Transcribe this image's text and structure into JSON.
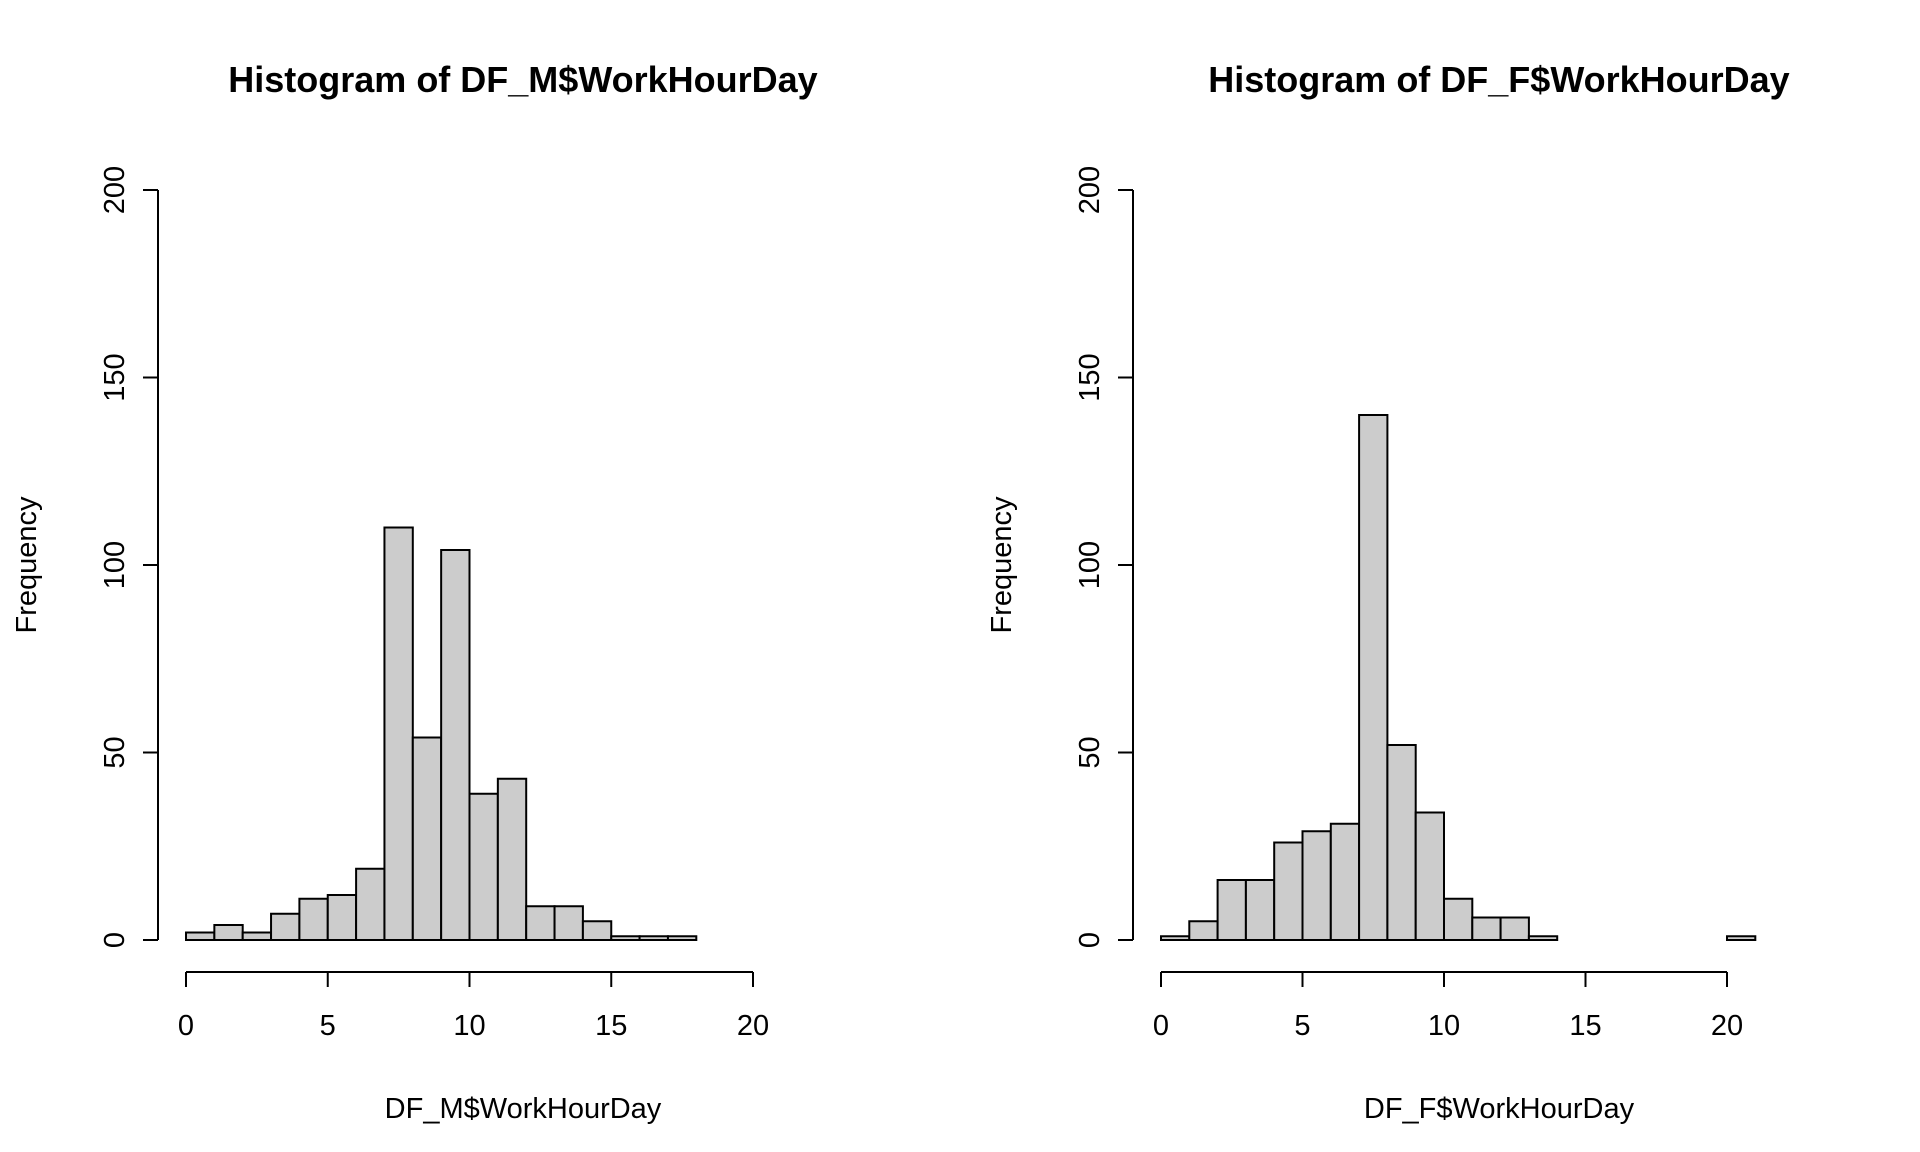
{
  "chart_data": [
    {
      "type": "bar",
      "title": "Histogram of DF_M$WorkHourDay",
      "xlabel": "DF_M$WorkHourDay",
      "ylabel": "Frequency",
      "bin_width": 1,
      "bin_start": 0,
      "counts": [
        2,
        4,
        2,
        7,
        11,
        12,
        19,
        110,
        54,
        104,
        39,
        43,
        9,
        9,
        5,
        1,
        1,
        1,
        0,
        0,
        0,
        0,
        0,
        0
      ],
      "xlim": [
        0,
        24
      ],
      "ylim": [
        0,
        200
      ],
      "xticks": [
        0,
        5,
        10,
        15,
        20
      ],
      "yticks": [
        0,
        50,
        100,
        150,
        200
      ],
      "bar_color": "#cccccc",
      "grid": false
    },
    {
      "type": "bar",
      "title": "Histogram of DF_F$WorkHourDay",
      "xlabel": "DF_F$WorkHourDay",
      "ylabel": "Frequency",
      "bin_width": 1,
      "bin_start": 0,
      "counts": [
        1,
        5,
        16,
        16,
        26,
        29,
        31,
        140,
        52,
        34,
        11,
        6,
        6,
        1,
        0,
        0,
        0,
        0,
        0,
        0,
        1,
        0,
        0,
        0
      ],
      "xlim": [
        0,
        24
      ],
      "ylim": [
        0,
        200
      ],
      "xticks": [
        0,
        5,
        10,
        15,
        20
      ],
      "yticks": [
        0,
        50,
        100,
        150,
        200
      ],
      "bar_color": "#cccccc",
      "grid": false
    }
  ]
}
